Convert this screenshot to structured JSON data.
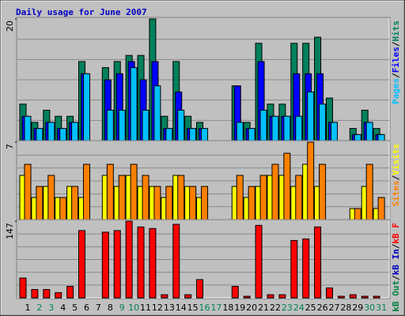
{
  "chart_data": [
    {
      "type": "bar",
      "title": "Daily usage for June 2007",
      "ylim": [
        0,
        20
      ],
      "yticks": [
        20
      ],
      "legend_separator": "/",
      "series": [
        {
          "name": "Hits",
          "color": "#00805c",
          "values": [
            6,
            3,
            5,
            4,
            4,
            13,
            0,
            12,
            13,
            14,
            14,
            20,
            4,
            13,
            4,
            3,
            0,
            0,
            9,
            3,
            16,
            6,
            6,
            16,
            16,
            17,
            7,
            0,
            2,
            5,
            2
          ]
        },
        {
          "name": "Files",
          "color": "#0000ff",
          "values": [
            4,
            2,
            3,
            2,
            3,
            11,
            0,
            10,
            11,
            13,
            10,
            13,
            2,
            8,
            2,
            2,
            0,
            0,
            9,
            2,
            13,
            4,
            4,
            11,
            11,
            11,
            3,
            0,
            1,
            3,
            1
          ]
        },
        {
          "name": "Pages",
          "color": "#00c0ff",
          "values": [
            4,
            2,
            3,
            2,
            3,
            11,
            0,
            5,
            5,
            12,
            5,
            9,
            2,
            5,
            2,
            2,
            0,
            0,
            3,
            2,
            5,
            4,
            4,
            4,
            8,
            6,
            3,
            0,
            1,
            3,
            1
          ]
        }
      ]
    },
    {
      "type": "bar",
      "ylim": [
        0,
        7
      ],
      "yticks": [
        7
      ],
      "legend_separator": "/",
      "series": [
        {
          "name": "Visits",
          "color": "#ffff00",
          "values": [
            4,
            2,
            3,
            2,
            3,
            2,
            0,
            4,
            3,
            4,
            3,
            3,
            2,
            4,
            3,
            2,
            0,
            0,
            3,
            2,
            3,
            4,
            4,
            3,
            5,
            3,
            0,
            0,
            1,
            3,
            1
          ]
        },
        {
          "name": "Sites",
          "color": "#ff8000",
          "values": [
            5,
            3,
            4,
            2,
            3,
            5,
            0,
            5,
            4,
            5,
            4,
            3,
            3,
            4,
            3,
            3,
            0,
            0,
            4,
            3,
            4,
            5,
            6,
            4,
            7,
            5,
            0,
            0,
            1,
            5,
            2
          ]
        }
      ]
    },
    {
      "type": "bar",
      "ylim": [
        0,
        147
      ],
      "yticks": [
        147
      ],
      "legend_separator": "/",
      "categories": [
        "1",
        "2",
        "3",
        "4",
        "5",
        "6",
        "7",
        "8",
        "9",
        "10",
        "11",
        "12",
        "13",
        "14",
        "15",
        "16",
        "17",
        "18",
        "19",
        "20",
        "21",
        "22",
        "23",
        "24",
        "25",
        "26",
        "27",
        "28",
        "29",
        "30",
        "31"
      ],
      "category_colors": [
        "#000000",
        "#00805c",
        "#00805c",
        "#000000",
        "#000000",
        "#000000",
        "#000000",
        "#000000",
        "#00805c",
        "#00805c",
        "#000000",
        "#000000",
        "#000000",
        "#000000",
        "#000000",
        "#00805c",
        "#00805c",
        "#000000",
        "#000000",
        "#000000",
        "#000000",
        "#000000",
        "#00805c",
        "#00805c",
        "#000000",
        "#000000",
        "#000000",
        "#000000",
        "#000000",
        "#00805c",
        "#00805c"
      ],
      "series": [
        {
          "name": "kB F",
          "color": "#ff0000",
          "values": [
            38,
            16,
            16,
            10,
            22,
            129,
            0,
            126,
            129,
            147,
            136,
            133,
            6,
            141,
            6,
            35,
            0,
            0,
            22,
            3,
            139,
            6,
            6,
            110,
            113,
            136,
            19,
            3,
            6,
            3,
            3
          ]
        },
        {
          "name": "kB In",
          "color": "#0000c0",
          "values": [
            0,
            0,
            0,
            0,
            0,
            0,
            0,
            0,
            0,
            0,
            0,
            0,
            0,
            0,
            0,
            0,
            0,
            0,
            0,
            0,
            0,
            0,
            0,
            0,
            0,
            0,
            0,
            0,
            0,
            0,
            0
          ]
        },
        {
          "name": "kB Out",
          "color": "#008040",
          "values": [
            0,
            0,
            0,
            0,
            0,
            0,
            0,
            0,
            0,
            0,
            0,
            0,
            0,
            0,
            0,
            0,
            0,
            0,
            0,
            0,
            0,
            0,
            0,
            0,
            0,
            0,
            0,
            0,
            0,
            0,
            0
          ]
        }
      ]
    }
  ]
}
